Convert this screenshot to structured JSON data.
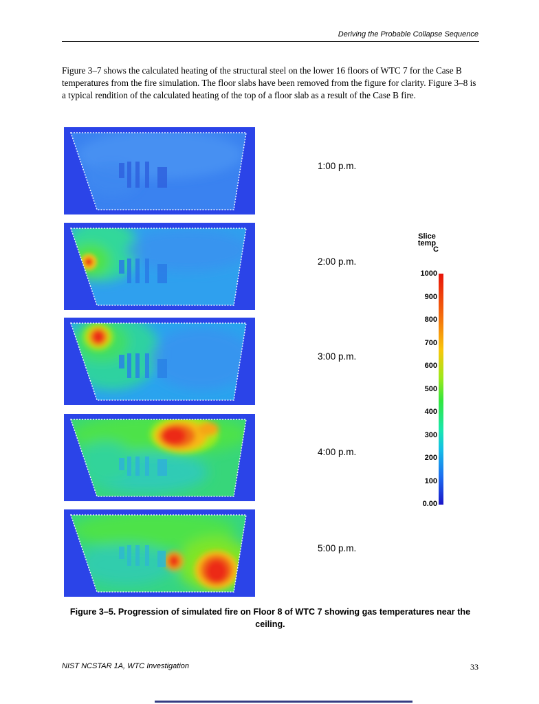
{
  "header": {
    "running_title": "Deriving the Probable Collapse Sequence"
  },
  "intro_paragraph": "Figure 3–7 shows the calculated heating of the structural steel on the lower 16 floors of WTC 7 for the Case B temperatures from the fire simulation.  The floor slabs have been removed from the figure for clarity.  Figure 3–8 is a typical rendition of the calculated heating of the top of a floor slab as a result of the Case B fire.",
  "figure": {
    "panels": [
      {
        "time": "1:00 p.m."
      },
      {
        "time": "2:00 p.m."
      },
      {
        "time": "3:00 p.m."
      },
      {
        "time": "4:00 p.m."
      },
      {
        "time": "5:00 p.m."
      }
    ],
    "colorbar": {
      "title_line1": "Slice",
      "title_line2": "temp",
      "title_line3": "C",
      "ticks": [
        "1000",
        "900",
        "800",
        "700",
        "600",
        "500",
        "400",
        "300",
        "200",
        "100",
        "0.00"
      ],
      "range": [
        0,
        1000
      ],
      "colors": [
        "#1b15c8",
        "#1c6df0",
        "#15bfe6",
        "#18e6b0",
        "#33e63d",
        "#9ee81b",
        "#f9c60b",
        "#f36a0d",
        "#e8140a"
      ]
    },
    "caption": "Figure 3–5.  Progression of simulated fire on Floor 8 of WTC 7 showing gas temperatures near the ceiling."
  },
  "footer": {
    "left": "NIST NCSTAR 1A, WTC Investigation",
    "page_number": "33"
  }
}
